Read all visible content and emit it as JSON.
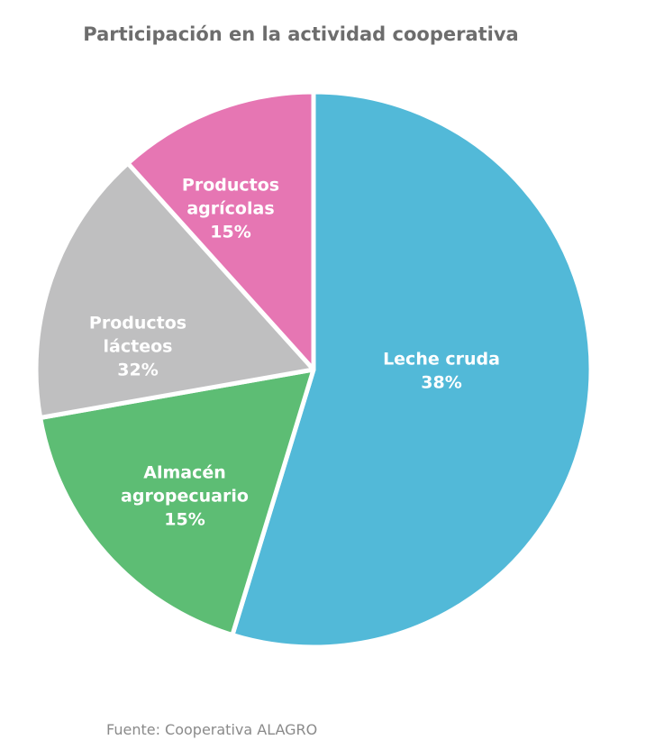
{
  "chart_data": {
    "type": "pie",
    "title": "Participación en la actividad cooperativa",
    "source": "Fuente: Cooperativa ALAGRO",
    "slices": [
      {
        "label_lines": [
          "Leche cruda"
        ],
        "value": 38,
        "display": "38%",
        "color": "#52b9d8"
      },
      {
        "label_lines": [
          "Almacén",
          "agropecuario"
        ],
        "value": 15,
        "display": "15%",
        "color": "#5dbd74"
      },
      {
        "label_lines": [
          "Productos",
          "lácteos"
        ],
        "value": 32,
        "display": "32%",
        "color": "#bfbfc0"
      },
      {
        "label_lines": [
          "Productos",
          "agrícolas"
        ],
        "value": 15,
        "display": "15%",
        "color": "#e676b3"
      }
    ]
  }
}
